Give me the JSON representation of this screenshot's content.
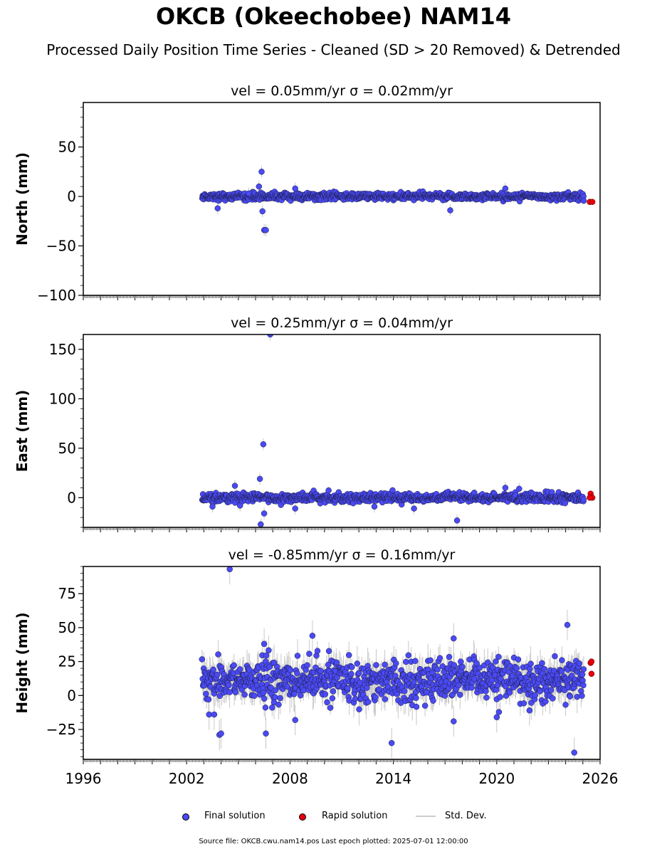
{
  "title": "OKCB (Okeechobee) NAM14",
  "subtitle": "Processed Daily Position Time Series - Cleaned (SD > 20 Removed) & Detrended",
  "legend": {
    "final_label": "Final solution",
    "rapid_label": "Rapid solution",
    "std_label": "Std. Dev."
  },
  "footer": "Source file: OKCB.cwu.nam14.pos  Last epoch plotted: 2025-07-01 12:00:00",
  "colors": {
    "final": "#4a4af4",
    "rapid": "#e8000b",
    "std": "#c8c8c8"
  },
  "chart_data": [
    {
      "type": "scatter",
      "component": "North",
      "title": "vel = 0.05mm/yr   σ = 0.02mm/yr",
      "ylabel": "North (mm)",
      "xlim": [
        1996,
        2026
      ],
      "ylim": [
        -100,
        95
      ],
      "yticks": [
        -100,
        -50,
        0,
        50
      ],
      "ytick_labels": [
        "−100",
        "−50",
        "0",
        "50"
      ],
      "xticks": [
        1996,
        2002,
        2008,
        2014,
        2020,
        2026
      ],
      "xtick_labels": [
        "1996",
        "2002",
        "2008",
        "2014",
        "2020",
        "2026"
      ],
      "data_range": [
        2002.9,
        2025.05
      ],
      "scatter_sd": 1.8,
      "outliers": [
        [
          2006.35,
          25
        ],
        [
          2006.5,
          -34
        ],
        [
          2006.6,
          -34
        ],
        [
          2006.2,
          10
        ],
        [
          2006.4,
          -15
        ],
        [
          2008.3,
          8
        ],
        [
          2017.3,
          -14
        ],
        [
          2020.5,
          8
        ],
        [
          2003.8,
          -12
        ],
        [
          2005.6,
          3
        ]
      ],
      "rapid": [
        [
          2025.4,
          -5.5
        ],
        [
          2025.55,
          -5.5
        ]
      ]
    },
    {
      "type": "scatter",
      "component": "East",
      "title": "vel = 0.25mm/yr   σ = 0.04mm/yr",
      "ylabel": "East (mm)",
      "xlim": [
        1996,
        2026
      ],
      "ylim": [
        -30,
        165
      ],
      "yticks": [
        0,
        50,
        100,
        150
      ],
      "ytick_labels": [
        "0",
        "50",
        "100",
        "150"
      ],
      "xticks": [
        1996,
        2002,
        2008,
        2014,
        2020,
        2026
      ],
      "xtick_labels": [
        "1996",
        "2002",
        "2008",
        "2014",
        "2020",
        "2026"
      ],
      "data_range": [
        2002.9,
        2025.05
      ],
      "scatter_sd": 2.2,
      "outliers": [
        [
          2006.85,
          165
        ],
        [
          2006.45,
          54
        ],
        [
          2006.25,
          19
        ],
        [
          2006.3,
          -27
        ],
        [
          2006.5,
          -16
        ],
        [
          2004.8,
          12
        ],
        [
          2017.7,
          -23
        ],
        [
          2015.2,
          -11
        ],
        [
          2008.3,
          -11
        ],
        [
          2012.9,
          -9
        ],
        [
          2003.5,
          -9
        ],
        [
          2020.5,
          10
        ],
        [
          2021.3,
          9
        ],
        [
          2005.1,
          -8
        ]
      ],
      "rapid": [
        [
          2025.45,
          4
        ],
        [
          2025.55,
          0
        ],
        [
          2025.4,
          0
        ]
      ]
    },
    {
      "type": "scatter",
      "component": "Height",
      "title": "vel = -0.85mm/yr   σ = 0.16mm/yr",
      "ylabel": "Height (mm)",
      "xlim": [
        1996,
        2026
      ],
      "ylim": [
        -47,
        95
      ],
      "yticks": [
        -25,
        0,
        25,
        50,
        75
      ],
      "ytick_labels": [
        "−25",
        "0",
        "25",
        "50",
        "75"
      ],
      "xticks": [
        1996,
        2002,
        2008,
        2014,
        2020,
        2026
      ],
      "xtick_labels": [
        "1996",
        "2002",
        "2008",
        "2014",
        "2020",
        "2026"
      ],
      "data_range": [
        2002.9,
        2025.05
      ],
      "scatter_sd": 7.5,
      "center": 11,
      "outliers": [
        [
          2004.5,
          93
        ],
        [
          2024.1,
          52
        ],
        [
          2009.3,
          44
        ],
        [
          2017.5,
          42
        ],
        [
          2003.9,
          -29
        ],
        [
          2004.0,
          -28
        ],
        [
          2006.6,
          -28
        ],
        [
          2013.9,
          -35
        ],
        [
          2024.5,
          -42
        ],
        [
          2017.5,
          -19
        ],
        [
          2008.3,
          -18
        ],
        [
          2006.5,
          38
        ],
        [
          2003.3,
          -14
        ],
        [
          2003.6,
          -14
        ],
        [
          2020.0,
          -16
        ],
        [
          2021.9,
          -11
        ]
      ],
      "rapid": [
        [
          2025.45,
          24
        ],
        [
          2025.5,
          25
        ],
        [
          2025.5,
          16
        ]
      ]
    }
  ]
}
